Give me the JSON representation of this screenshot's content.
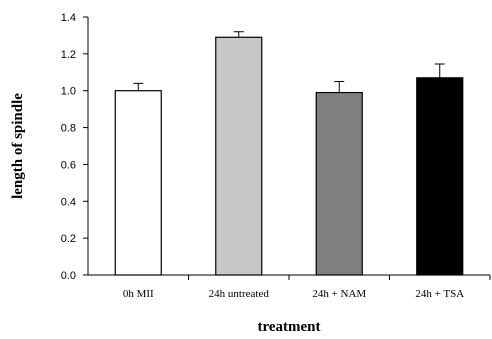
{
  "chart_data": {
    "type": "bar",
    "title": "",
    "xlabel": "treatment",
    "ylabel": "length of spindle",
    "ylim": [
      0,
      1.4
    ],
    "yticks": [
      "0.0",
      "0.2",
      "0.4",
      "0.6",
      "0.8",
      "1.0",
      "1.2",
      "1.4"
    ],
    "categories": [
      "0h MII",
      "24h untreated",
      "24h + NAM",
      "24h + TSA"
    ],
    "values": [
      1.0,
      1.29,
      0.99,
      1.07
    ],
    "error_upper": [
      0.04,
      0.03,
      0.06,
      0.075
    ],
    "bar_colors": [
      "#ffffff",
      "#c8c8c8",
      "#808080",
      "#000000"
    ],
    "bar_outline_color": "#000000",
    "grid": false,
    "legend": "none"
  }
}
